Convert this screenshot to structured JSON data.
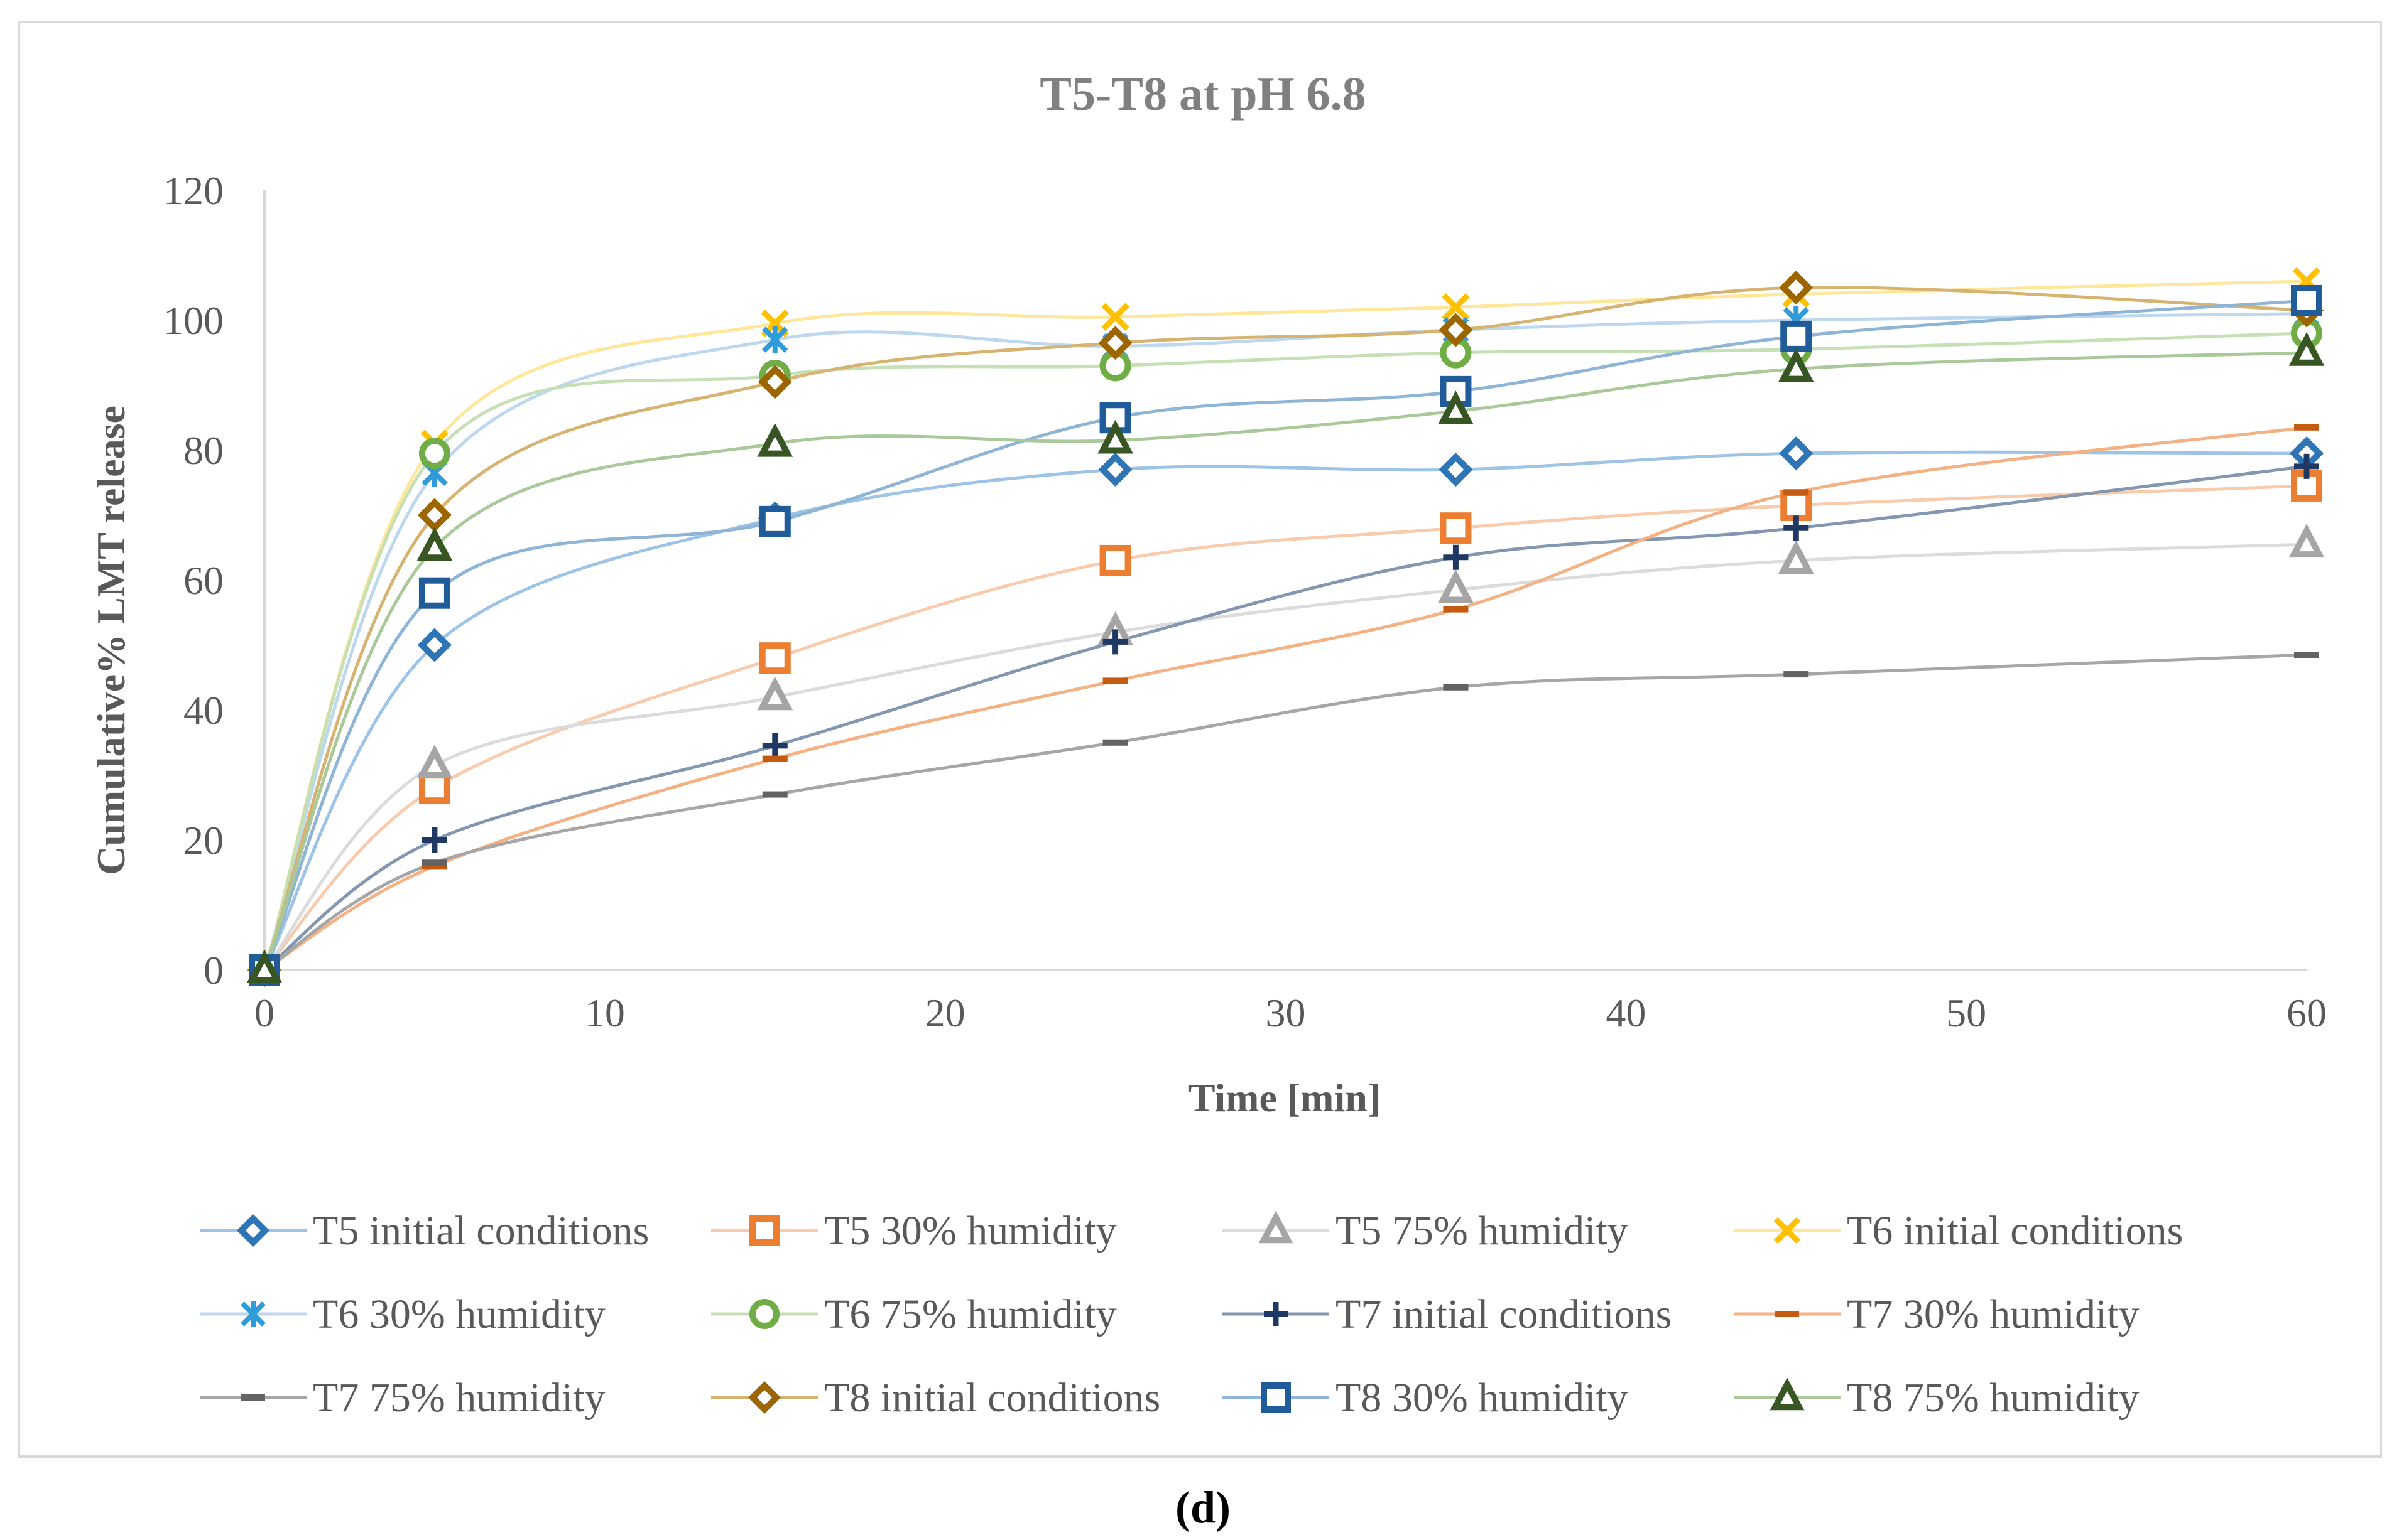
{
  "caption": "(d)",
  "chart_data": {
    "type": "line",
    "title": "T5-T8 at pH 6.8",
    "xlabel": "Time [min]",
    "ylabel": "Cumulative% LMT release",
    "xlim": [
      0,
      60
    ],
    "ylim": [
      0,
      120
    ],
    "xticks": [
      "0",
      "10",
      "20",
      "30",
      "40",
      "50",
      "60"
    ],
    "yticks": [
      "0",
      "20",
      "40",
      "60",
      "80",
      "100",
      "120"
    ],
    "grid": false,
    "legend_position": "bottom",
    "x": [
      0,
      5,
      15,
      25,
      35,
      45,
      60
    ],
    "series": [
      {
        "name": "T5 initial conditions",
        "color": "#2E75B6",
        "line_color": "#9DC3E6",
        "marker": "diamond",
        "values": [
          0,
          50,
          69.5,
          77,
          77,
          79.5,
          79.5
        ]
      },
      {
        "name": "T5 30% humidity",
        "color": "#ED7D31",
        "line_color": "#F8CBAD",
        "marker": "square",
        "values": [
          0,
          28,
          48,
          63,
          68,
          71.5,
          74.5
        ]
      },
      {
        "name": "T5 75% humidity",
        "color": "#A5A5A5",
        "line_color": "#DBDBDB",
        "marker": "triangle",
        "values": [
          0,
          31.5,
          42,
          52,
          58.5,
          63,
          65.5
        ]
      },
      {
        "name": "T6 initial conditions",
        "color": "#FFC000",
        "line_color": "#FFE699",
        "marker": "x",
        "values": [
          0,
          81,
          99.5,
          100.5,
          102,
          104,
          106
        ]
      },
      {
        "name": "T6 30% humidity",
        "color": "#2F9CD9",
        "line_color": "#BDD7EE",
        "marker": "star",
        "values": [
          0,
          76.5,
          97,
          96,
          98.5,
          100,
          101
        ]
      },
      {
        "name": "T6 75% humidity",
        "color": "#70AD47",
        "line_color": "#C5E0B4",
        "marker": "circle",
        "values": [
          0,
          79.5,
          91.5,
          93,
          95,
          95.5,
          98
        ]
      },
      {
        "name": "T7 initial conditions",
        "color": "#1F3864",
        "line_color": "#8497B0",
        "marker": "plus",
        "values": [
          0,
          20,
          34.5,
          50.5,
          63.5,
          68,
          77.5
        ]
      },
      {
        "name": "T7 30% humidity",
        "color": "#C55A11",
        "line_color": "#F4B183",
        "marker": "dash",
        "values": [
          0,
          16,
          32.5,
          44.5,
          55.5,
          73.5,
          83.5
        ]
      },
      {
        "name": "T7 75% humidity",
        "color": "#636363",
        "line_color": "#A6A6A6",
        "marker": "dash",
        "values": [
          0,
          16.5,
          27,
          35,
          43.5,
          45.5,
          48.5
        ]
      },
      {
        "name": "T8 initial conditions",
        "color": "#9C6500",
        "line_color": "#D6B370",
        "marker": "diamond",
        "values": [
          0,
          70,
          90.5,
          96.5,
          98.5,
          105,
          101.5
        ]
      },
      {
        "name": "T8 30% humidity",
        "color": "#1F5C99",
        "line_color": "#8EB4D6",
        "marker": "square",
        "values": [
          0,
          58,
          69,
          85,
          89,
          97.5,
          103
        ]
      },
      {
        "name": "T8 75% humidity",
        "color": "#375623",
        "line_color": "#A9C99A",
        "marker": "triangle",
        "values": [
          0,
          65,
          81,
          81.5,
          86,
          92.5,
          95
        ]
      }
    ]
  }
}
